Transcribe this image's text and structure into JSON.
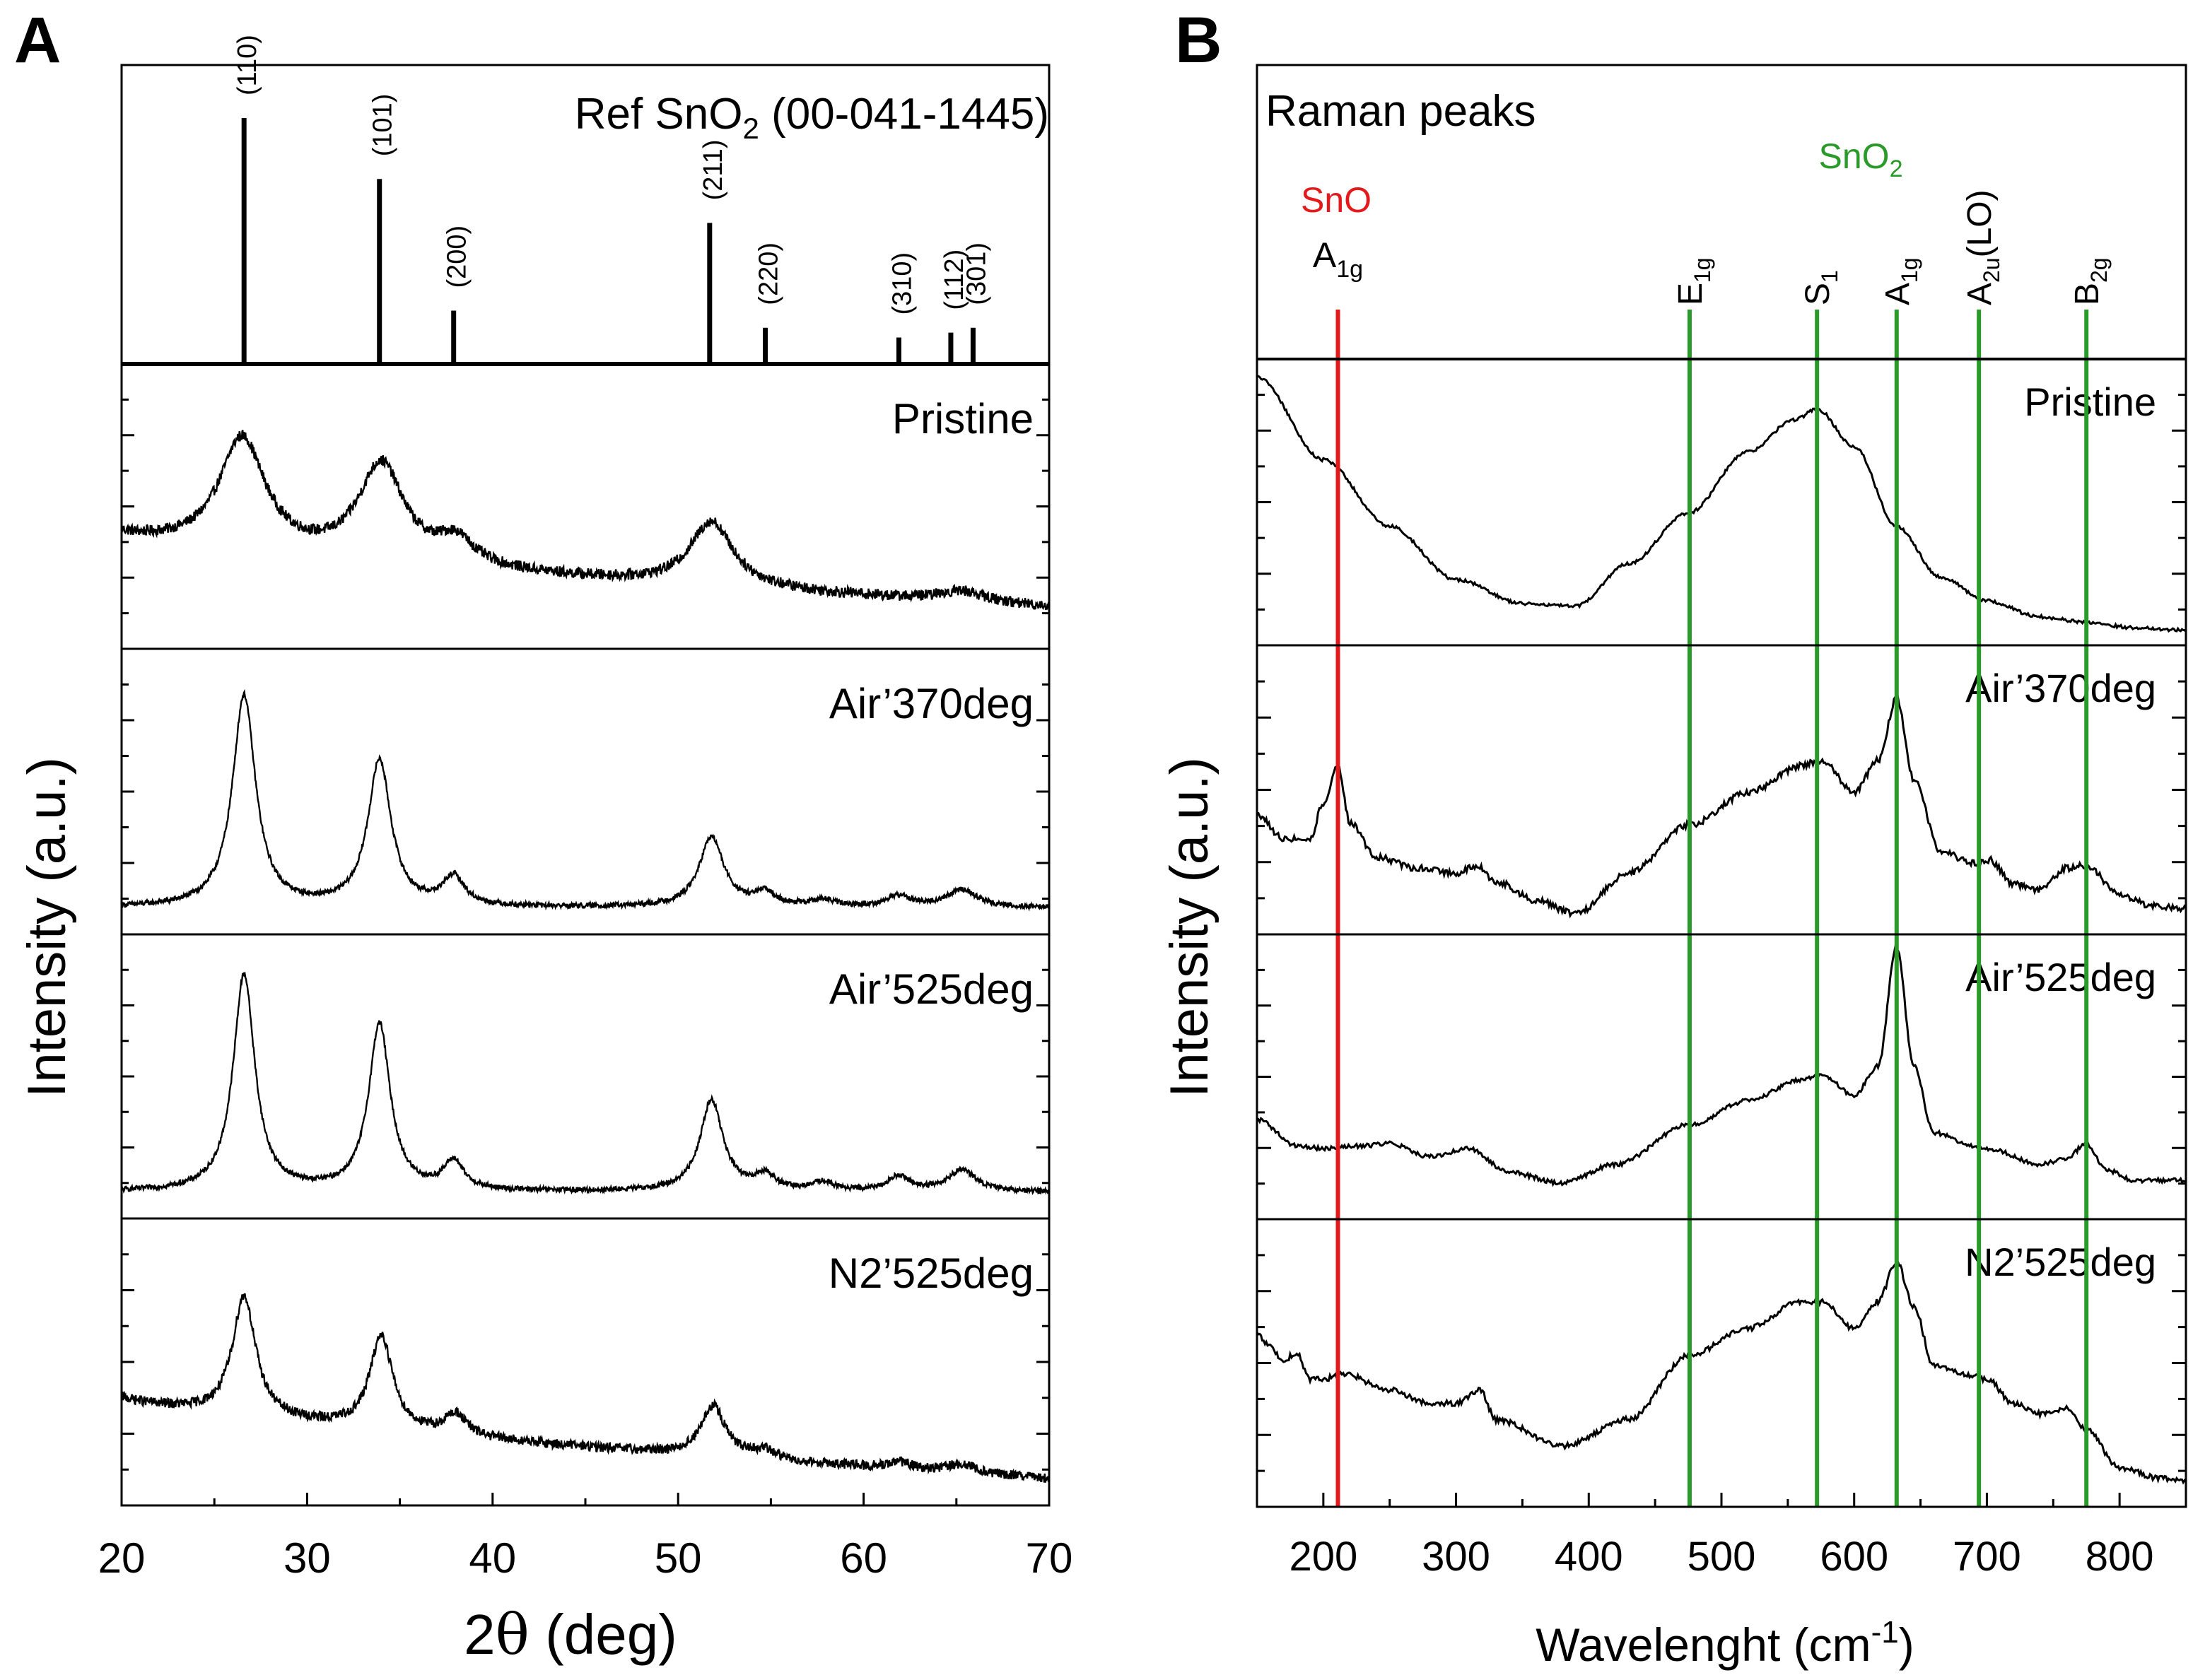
{
  "panels": {
    "a_letter": "A",
    "b_letter": "B"
  },
  "colors": {
    "line": "#000000",
    "sno_marker": "#e3191b",
    "sno2_marker": "#2a9a2a"
  },
  "chart_data": [
    {
      "id": "xrd",
      "type": "line",
      "panel": "A",
      "xlabel_prefix": "2",
      "xlabel_theta": "θ",
      "xlabel_suffix": " (deg)",
      "ylabel": "Intensity (a.u.)",
      "xlim": [
        20,
        70
      ],
      "x_ticks": [
        20,
        30,
        40,
        50,
        60,
        70
      ],
      "x_tick_labels": [
        "20",
        "30",
        "40",
        "50",
        "60",
        "70"
      ],
      "reference": {
        "title_prefix": "Ref SnO",
        "title_sub": "2",
        "title_suffix": " (00-041-1445)",
        "peaks": [
          {
            "hkl": "(110)",
            "x": 26.6,
            "intensity": 100
          },
          {
            "hkl": "(101)",
            "x": 33.9,
            "intensity": 75
          },
          {
            "hkl": "(200)",
            "x": 37.9,
            "intensity": 21
          },
          {
            "hkl": "(211)",
            "x": 51.7,
            "intensity": 57
          },
          {
            "hkl": "(220)",
            "x": 54.7,
            "intensity": 14
          },
          {
            "hkl": "(310)",
            "x": 61.9,
            "intensity": 10
          },
          {
            "hkl": "(112)",
            "x": 64.7,
            "intensity": 12
          },
          {
            "hkl": "(301)",
            "x": 65.9,
            "intensity": 14
          }
        ]
      },
      "series": [
        {
          "name": "Pristine",
          "baseline": [
            0.45,
            0.12
          ],
          "noise": 0.025,
          "peaks": [
            {
              "center": 26.5,
              "height": 0.52,
              "width": 1.5
            },
            {
              "center": 34.0,
              "height": 0.45,
              "width": 1.5
            },
            {
              "center": 38.0,
              "height": 0.12,
              "width": 1.2
            },
            {
              "center": 51.8,
              "height": 0.3,
              "width": 1.4
            },
            {
              "center": 65.3,
              "height": 0.05,
              "width": 1.5
            }
          ]
        },
        {
          "name": "Air’370deg",
          "baseline": [
            0.05,
            0.05
          ],
          "noise": 0.012,
          "peaks": [
            {
              "center": 26.6,
              "height": 0.97,
              "width": 0.75
            },
            {
              "center": 33.9,
              "height": 0.67,
              "width": 0.75
            },
            {
              "center": 37.9,
              "height": 0.13,
              "width": 0.7
            },
            {
              "center": 51.8,
              "height": 0.32,
              "width": 0.8
            },
            {
              "center": 54.7,
              "height": 0.06,
              "width": 0.7
            },
            {
              "center": 57.8,
              "height": 0.03,
              "width": 0.8
            },
            {
              "center": 61.9,
              "height": 0.05,
              "width": 0.8
            },
            {
              "center": 65.3,
              "height": 0.08,
              "width": 1.0
            }
          ]
        },
        {
          "name": "Air’525deg",
          "baseline": [
            0.05,
            0.05
          ],
          "noise": 0.012,
          "peaks": [
            {
              "center": 26.6,
              "height": 1.0,
              "width": 0.7
            },
            {
              "center": 33.9,
              "height": 0.77,
              "width": 0.7
            },
            {
              "center": 37.9,
              "height": 0.13,
              "width": 0.65
            },
            {
              "center": 51.8,
              "height": 0.42,
              "width": 0.75
            },
            {
              "center": 54.7,
              "height": 0.07,
              "width": 0.65
            },
            {
              "center": 57.8,
              "height": 0.04,
              "width": 0.7
            },
            {
              "center": 61.9,
              "height": 0.07,
              "width": 0.7
            },
            {
              "center": 65.3,
              "height": 0.1,
              "width": 0.9
            }
          ]
        },
        {
          "name": "N2’525deg",
          "baseline": [
            0.42,
            0.05
          ],
          "noise": 0.022,
          "peaks": [
            {
              "center": 26.6,
              "height": 0.55,
              "width": 0.75
            },
            {
              "center": 34.0,
              "height": 0.43,
              "width": 0.75
            },
            {
              "center": 38.0,
              "height": 0.1,
              "width": 0.7
            },
            {
              "center": 51.9,
              "height": 0.23,
              "width": 0.8
            },
            {
              "center": 54.7,
              "height": 0.04,
              "width": 0.7
            },
            {
              "center": 62.0,
              "height": 0.03,
              "width": 0.8
            },
            {
              "center": 65.3,
              "height": 0.04,
              "width": 1.0
            }
          ]
        }
      ]
    },
    {
      "id": "raman",
      "type": "line",
      "panel": "B",
      "xlabel": "Wavelenght (cm",
      "xlabel_sup": "-1",
      "xlabel_close": ")",
      "ylabel": "Intensity (a.u.)",
      "xlim": [
        150,
        850
      ],
      "x_ticks": [
        200,
        300,
        400,
        500,
        600,
        700,
        800
      ],
      "x_tick_labels": [
        "200",
        "300",
        "400",
        "500",
        "600",
        "700",
        "800"
      ],
      "header_title": "Raman peaks",
      "sno_label": "SnO",
      "sno2_label_main": "SnO",
      "sno2_label_sub": "2",
      "markers": [
        {
          "x": 211,
          "phase": "SnO",
          "main": "A",
          "sub": "1g",
          "suffix": ""
        },
        {
          "x": 476,
          "phase": "SnO2",
          "main": "E",
          "sub": "1g",
          "suffix": ""
        },
        {
          "x": 572,
          "phase": "SnO2",
          "main": "S",
          "sub": "1",
          "suffix": ""
        },
        {
          "x": 632,
          "phase": "SnO2",
          "main": "A",
          "sub": "1g",
          "suffix": ""
        },
        {
          "x": 694,
          "phase": "SnO2",
          "main": "A",
          "sub": "2u",
          "suffix": "(LO)"
        },
        {
          "x": 775,
          "phase": "SnO2",
          "main": "B",
          "sub": "2g",
          "suffix": ""
        }
      ],
      "series": [
        {
          "name": "Pristine",
          "noise": 0.006,
          "points": [
            [
              150,
              0.98
            ],
            [
              200,
              0.67
            ],
            [
              250,
              0.42
            ],
            [
              300,
              0.22
            ],
            [
              350,
              0.13
            ],
            [
              390,
              0.12
            ],
            [
              430,
              0.28
            ],
            [
              475,
              0.47
            ],
            [
              520,
              0.7
            ],
            [
              555,
              0.82
            ],
            [
              572,
              0.86
            ],
            [
              600,
              0.72
            ],
            [
              632,
              0.42
            ],
            [
              665,
              0.23
            ],
            [
              700,
              0.14
            ],
            [
              740,
              0.08
            ],
            [
              775,
              0.06
            ],
            [
              810,
              0.04
            ],
            [
              850,
              0.03
            ]
          ]
        },
        {
          "name": "Air’370deg",
          "noise": 0.012,
          "points": [
            [
              150,
              0.42
            ],
            [
              170,
              0.33
            ],
            [
              190,
              0.33
            ],
            [
              200,
              0.46
            ],
            [
              211,
              0.6
            ],
            [
              220,
              0.39
            ],
            [
              240,
              0.26
            ],
            [
              270,
              0.22
            ],
            [
              300,
              0.2
            ],
            [
              315,
              0.23
            ],
            [
              330,
              0.17
            ],
            [
              360,
              0.1
            ],
            [
              390,
              0.05
            ],
            [
              430,
              0.2
            ],
            [
              476,
              0.38
            ],
            [
              520,
              0.5
            ],
            [
              560,
              0.6
            ],
            [
              575,
              0.62
            ],
            [
              600,
              0.5
            ],
            [
              618,
              0.62
            ],
            [
              632,
              0.85
            ],
            [
              645,
              0.55
            ],
            [
              665,
              0.28
            ],
            [
              690,
              0.24
            ],
            [
              702,
              0.25
            ],
            [
              720,
              0.16
            ],
            [
              740,
              0.14
            ],
            [
              760,
              0.22
            ],
            [
              775,
              0.23
            ],
            [
              800,
              0.12
            ],
            [
              825,
              0.08
            ],
            [
              850,
              0.07
            ]
          ]
        },
        {
          "name": "Air’525deg",
          "noise": 0.008,
          "points": [
            [
              150,
              0.35
            ],
            [
              180,
              0.25
            ],
            [
              200,
              0.24
            ],
            [
              230,
              0.25
            ],
            [
              250,
              0.26
            ],
            [
              280,
              0.21
            ],
            [
              310,
              0.24
            ],
            [
              340,
              0.15
            ],
            [
              380,
              0.11
            ],
            [
              420,
              0.18
            ],
            [
              476,
              0.33
            ],
            [
              520,
              0.42
            ],
            [
              560,
              0.5
            ],
            [
              575,
              0.52
            ],
            [
              600,
              0.44
            ],
            [
              618,
              0.55
            ],
            [
              632,
              1.0
            ],
            [
              645,
              0.55
            ],
            [
              660,
              0.3
            ],
            [
              690,
              0.25
            ],
            [
              700,
              0.24
            ],
            [
              740,
              0.18
            ],
            [
              760,
              0.2
            ],
            [
              775,
              0.26
            ],
            [
              790,
              0.16
            ],
            [
              810,
              0.12
            ],
            [
              850,
              0.12
            ]
          ]
        },
        {
          "name": "N2’525deg",
          "noise": 0.01,
          "points": [
            [
              150,
              0.62
            ],
            [
              160,
              0.57
            ],
            [
              170,
              0.52
            ],
            [
              180,
              0.55
            ],
            [
              190,
              0.45
            ],
            [
              200,
              0.45
            ],
            [
              215,
              0.47
            ],
            [
              250,
              0.41
            ],
            [
              280,
              0.36
            ],
            [
              300,
              0.36
            ],
            [
              318,
              0.41
            ],
            [
              330,
              0.3
            ],
            [
              380,
              0.2
            ],
            [
              430,
              0.3
            ],
            [
              476,
              0.54
            ],
            [
              520,
              0.64
            ],
            [
              560,
              0.74
            ],
            [
              575,
              0.74
            ],
            [
              600,
              0.64
            ],
            [
              618,
              0.74
            ],
            [
              632,
              0.89
            ],
            [
              645,
              0.72
            ],
            [
              660,
              0.5
            ],
            [
              690,
              0.46
            ],
            [
              700,
              0.45
            ],
            [
              720,
              0.36
            ],
            [
              740,
              0.32
            ],
            [
              760,
              0.34
            ],
            [
              775,
              0.26
            ],
            [
              800,
              0.12
            ],
            [
              830,
              0.08
            ],
            [
              850,
              0.07
            ]
          ]
        }
      ]
    }
  ]
}
